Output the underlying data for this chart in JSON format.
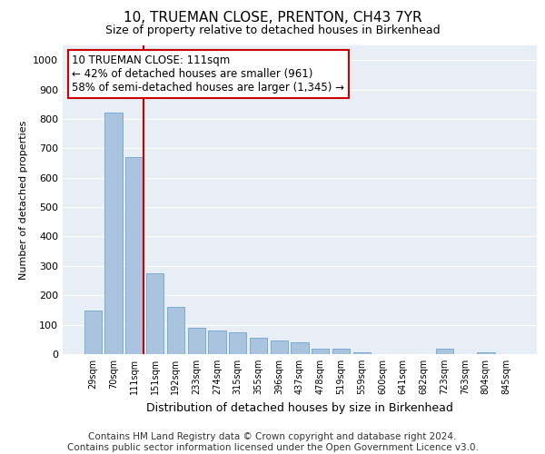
{
  "title": "10, TRUEMAN CLOSE, PRENTON, CH43 7YR",
  "subtitle": "Size of property relative to detached houses in Birkenhead",
  "xlabel": "Distribution of detached houses by size in Birkenhead",
  "ylabel": "Number of detached properties",
  "categories": [
    "29sqm",
    "70sqm",
    "111sqm",
    "151sqm",
    "192sqm",
    "233sqm",
    "274sqm",
    "315sqm",
    "355sqm",
    "396sqm",
    "437sqm",
    "478sqm",
    "519sqm",
    "559sqm",
    "600sqm",
    "641sqm",
    "682sqm",
    "723sqm",
    "763sqm",
    "804sqm",
    "845sqm"
  ],
  "values": [
    148,
    820,
    670,
    275,
    160,
    90,
    80,
    75,
    55,
    45,
    40,
    20,
    18,
    5,
    0,
    0,
    0,
    18,
    0,
    5,
    0
  ],
  "bar_color": "#aac4e0",
  "bar_edge_color": "#5a9bc8",
  "highlight_bar_index": 2,
  "highlight_line_color": "#cc0000",
  "ylim": [
    0,
    1050
  ],
  "yticks": [
    0,
    100,
    200,
    300,
    400,
    500,
    600,
    700,
    800,
    900,
    1000
  ],
  "annotation_text": "10 TRUEMAN CLOSE: 111sqm\n← 42% of detached houses are smaller (961)\n58% of semi-detached houses are larger (1,345) →",
  "annotation_box_color": "#ffffff",
  "annotation_border_color": "#cc0000",
  "footer_line1": "Contains HM Land Registry data © Crown copyright and database right 2024.",
  "footer_line2": "Contains public sector information licensed under the Open Government Licence v3.0.",
  "background_color": "#e8eef5",
  "grid_color": "#ffffff",
  "title_fontsize": 11,
  "subtitle_fontsize": 9,
  "annotation_fontsize": 8.5,
  "footer_fontsize": 7.5,
  "ylabel_fontsize": 8,
  "xlabel_fontsize": 9
}
